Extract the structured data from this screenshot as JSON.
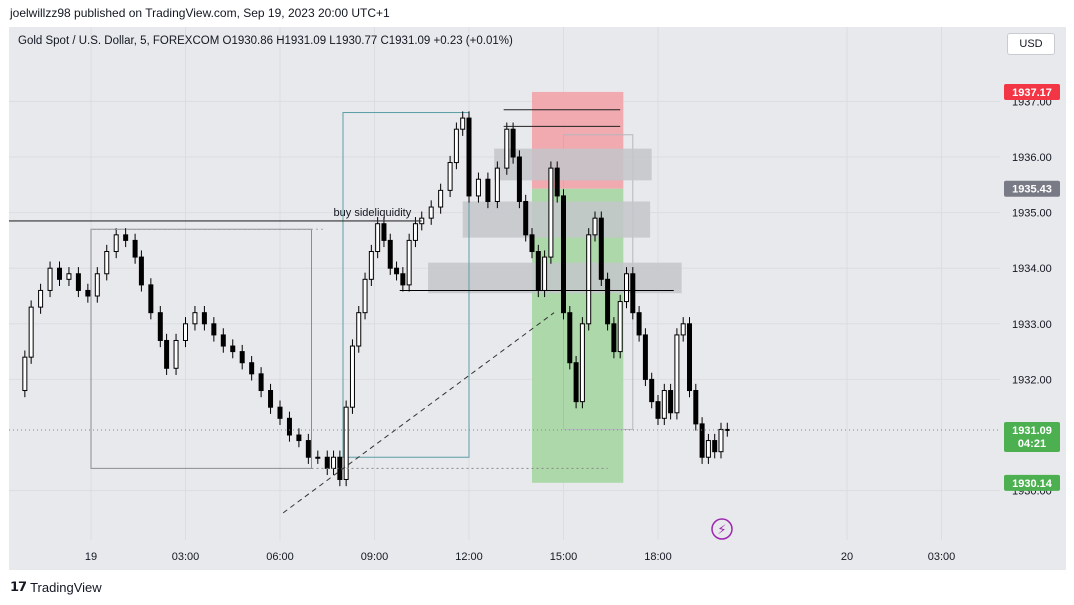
{
  "publisher": "joelwillzz98 published on TradingView.com, Sep 19, 2023 20:00 UTC+1",
  "symbol_line": "Gold Spot / U.S. Dollar, 5, FOREXCOM  O1930.86  H1931.09  L1930.77  C1931.09  +0.23 (+0.01%)",
  "currency_button": "USD",
  "brand": "TradingView",
  "colors": {
    "candle": "#000000",
    "stop_zone": "#f2a3a8",
    "target_zone": "#a6d7a3",
    "stop_tag": "#f23645",
    "target_tag": "#4caf50",
    "grey_tag": "#787b86",
    "current_price_tag": "#4caf50",
    "boxes": "#c3c5ca",
    "teal_box": "#5b9ea6"
  },
  "chart_data": {
    "type": "candlestick",
    "title": "Gold Spot / U.S. Dollar, 5, FOREXCOM",
    "ylim": [
      1929.6,
      1937.6
    ],
    "y_ticks": [
      "1930.00",
      "1932.00",
      "1933.00",
      "1934.00",
      "1935.00",
      "1936.00",
      "1937.00"
    ],
    "x_ticks": [
      "19",
      "03:00",
      "06:00",
      "09:00",
      "12:00",
      "15:00",
      "18:00",
      "20",
      "03:00"
    ],
    "x_tick_hours": [
      0,
      3,
      6,
      9,
      12,
      15,
      18,
      24,
      27
    ],
    "price_tags": [
      {
        "value": "1937.17",
        "kind": "stop"
      },
      {
        "value": "1935.43",
        "kind": "grey"
      },
      {
        "value": "1931.09",
        "extra": "04:21",
        "kind": "current"
      },
      {
        "value": "1930.14",
        "kind": "target"
      }
    ],
    "annotation": "buy sideliquidity",
    "close_path": [
      [
        -2.4,
        1931.8
      ],
      [
        -2.1,
        1932.4
      ],
      [
        -1.9,
        1933.3
      ],
      [
        -1.6,
        1933.6
      ],
      [
        -1.3,
        1934.0
      ],
      [
        -1.0,
        1933.8
      ],
      [
        -0.7,
        1933.9
      ],
      [
        -0.4,
        1933.6
      ],
      [
        -0.1,
        1933.5
      ],
      [
        0.2,
        1933.9
      ],
      [
        0.5,
        1934.3
      ],
      [
        0.8,
        1934.6
      ],
      [
        1.1,
        1934.5
      ],
      [
        1.4,
        1934.2
      ],
      [
        1.6,
        1933.7
      ],
      [
        1.9,
        1933.2
      ],
      [
        2.2,
        1932.7
      ],
      [
        2.4,
        1932.2
      ],
      [
        2.7,
        1932.7
      ],
      [
        3.0,
        1933.0
      ],
      [
        3.3,
        1933.2
      ],
      [
        3.6,
        1933.0
      ],
      [
        3.9,
        1932.8
      ],
      [
        4.2,
        1932.6
      ],
      [
        4.5,
        1932.5
      ],
      [
        4.8,
        1932.3
      ],
      [
        5.1,
        1932.1
      ],
      [
        5.4,
        1931.8
      ],
      [
        5.7,
        1931.5
      ],
      [
        6.0,
        1931.3
      ],
      [
        6.3,
        1931.0
      ],
      [
        6.6,
        1930.9
      ],
      [
        6.9,
        1930.6
      ],
      [
        7.2,
        1930.6
      ],
      [
        7.5,
        1930.4
      ],
      [
        7.7,
        1930.6
      ],
      [
        7.9,
        1930.2
      ],
      [
        8.1,
        1931.5
      ],
      [
        8.3,
        1932.6
      ],
      [
        8.5,
        1933.2
      ],
      [
        8.7,
        1933.8
      ],
      [
        8.9,
        1934.3
      ],
      [
        9.1,
        1934.8
      ],
      [
        9.3,
        1934.5
      ],
      [
        9.5,
        1934.0
      ],
      [
        9.7,
        1933.9
      ],
      [
        9.9,
        1933.7
      ],
      [
        10.1,
        1934.5
      ],
      [
        10.3,
        1934.8
      ],
      [
        10.5,
        1934.9
      ],
      [
        10.8,
        1935.1
      ],
      [
        11.1,
        1935.4
      ],
      [
        11.4,
        1935.9
      ],
      [
        11.6,
        1936.5
      ],
      [
        11.8,
        1936.7
      ],
      [
        12.0,
        1935.3
      ],
      [
        12.3,
        1935.6
      ],
      [
        12.6,
        1935.2
      ],
      [
        12.9,
        1935.8
      ],
      [
        13.2,
        1936.5
      ],
      [
        13.4,
        1936.0
      ],
      [
        13.6,
        1935.2
      ],
      [
        13.8,
        1934.6
      ],
      [
        14.0,
        1934.3
      ],
      [
        14.2,
        1933.6
      ],
      [
        14.4,
        1934.2
      ],
      [
        14.6,
        1935.8
      ],
      [
        14.8,
        1935.3
      ],
      [
        15.0,
        1933.2
      ],
      [
        15.2,
        1932.3
      ],
      [
        15.4,
        1931.6
      ],
      [
        15.6,
        1933.0
      ],
      [
        15.8,
        1934.6
      ],
      [
        16.0,
        1934.9
      ],
      [
        16.2,
        1933.8
      ],
      [
        16.4,
        1933.0
      ],
      [
        16.6,
        1932.5
      ],
      [
        16.8,
        1933.4
      ],
      [
        17.0,
        1933.9
      ],
      [
        17.2,
        1933.2
      ],
      [
        17.4,
        1932.8
      ],
      [
        17.6,
        1932.0
      ],
      [
        17.8,
        1931.6
      ],
      [
        18.0,
        1931.3
      ],
      [
        18.2,
        1931.8
      ],
      [
        18.4,
        1931.4
      ],
      [
        18.6,
        1932.8
      ],
      [
        18.8,
        1933.0
      ],
      [
        19.0,
        1931.8
      ],
      [
        19.2,
        1931.2
      ],
      [
        19.4,
        1930.6
      ],
      [
        19.6,
        1930.9
      ],
      [
        19.8,
        1930.7
      ],
      [
        20.0,
        1931.1
      ],
      [
        20.2,
        1931.09
      ]
    ]
  }
}
